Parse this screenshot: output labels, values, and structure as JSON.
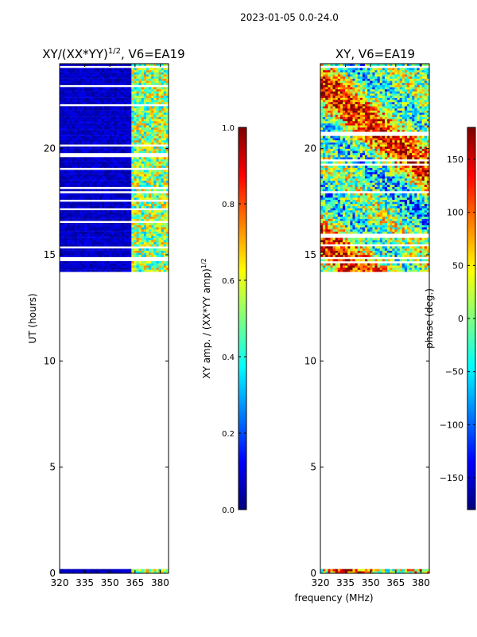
{
  "suptitle": "2023-01-05 0.0-24.0",
  "colors": {
    "frame": "#000000",
    "flag_bg": "#ffffff",
    "jet": [
      "#00007f",
      "#0000ff",
      "#007fff",
      "#00ffff",
      "#7fff7f",
      "#ffff00",
      "#ff7f00",
      "#ff0000",
      "#7f0000"
    ]
  },
  "chart_data": [
    {
      "type": "heatmap",
      "title_main": "XY/(XX*YY)",
      "title_sup": "1/2",
      "title_rest": ", V6=EA19",
      "xlabel": "",
      "ylabel": "UT (hours)",
      "x_range": [
        320,
        385
      ],
      "y_range": [
        0,
        24
      ],
      "xticks": [
        320,
        335,
        350,
        365,
        380
      ],
      "xtick_labels": [
        "320",
        "335",
        "350",
        "365",
        "380"
      ],
      "yticks": [
        0,
        5,
        10,
        15,
        20
      ],
      "ytick_labels": [
        "0",
        "5",
        "10",
        "15",
        "20"
      ],
      "data_time_ranges_hours": [
        [
          0.0,
          0.2
        ],
        [
          14.2,
          24.0
        ]
      ],
      "bright_band_freq_mhz": [
        362,
        384
      ],
      "colorbar": {
        "label": "XY amp. / (XX*YY amp)",
        "label_sup": "1/2",
        "range": [
          0.0,
          1.0
        ],
        "ticks": [
          0.0,
          0.2,
          0.4,
          0.6,
          0.8,
          1.0
        ],
        "tick_labels": [
          "0.0",
          "0.2",
          "0.4",
          "0.6",
          "0.8",
          "1.0"
        ]
      }
    },
    {
      "type": "heatmap",
      "title_main": "XY, V6=EA19",
      "xlabel": "frequency (MHz)",
      "ylabel": "",
      "x_range": [
        320,
        385
      ],
      "y_range": [
        0,
        24
      ],
      "xticks": [
        320,
        335,
        350,
        365,
        380
      ],
      "xtick_labels": [
        "320",
        "335",
        "350",
        "365",
        "380"
      ],
      "yticks": [
        0,
        5,
        10,
        15,
        20
      ],
      "ytick_labels": [
        "0",
        "5",
        "10",
        "15",
        "20"
      ],
      "data_time_ranges_hours": [
        [
          0.0,
          0.2
        ],
        [
          14.2,
          24.0
        ]
      ],
      "colorbar": {
        "label": "phase (deg.)",
        "range": [
          -180,
          180
        ],
        "ticks": [
          -150,
          -100,
          -50,
          0,
          50,
          100,
          150
        ],
        "tick_labels": [
          "−150",
          "−100",
          "−50",
          "0",
          "50",
          "100",
          "150"
        ]
      }
    }
  ]
}
